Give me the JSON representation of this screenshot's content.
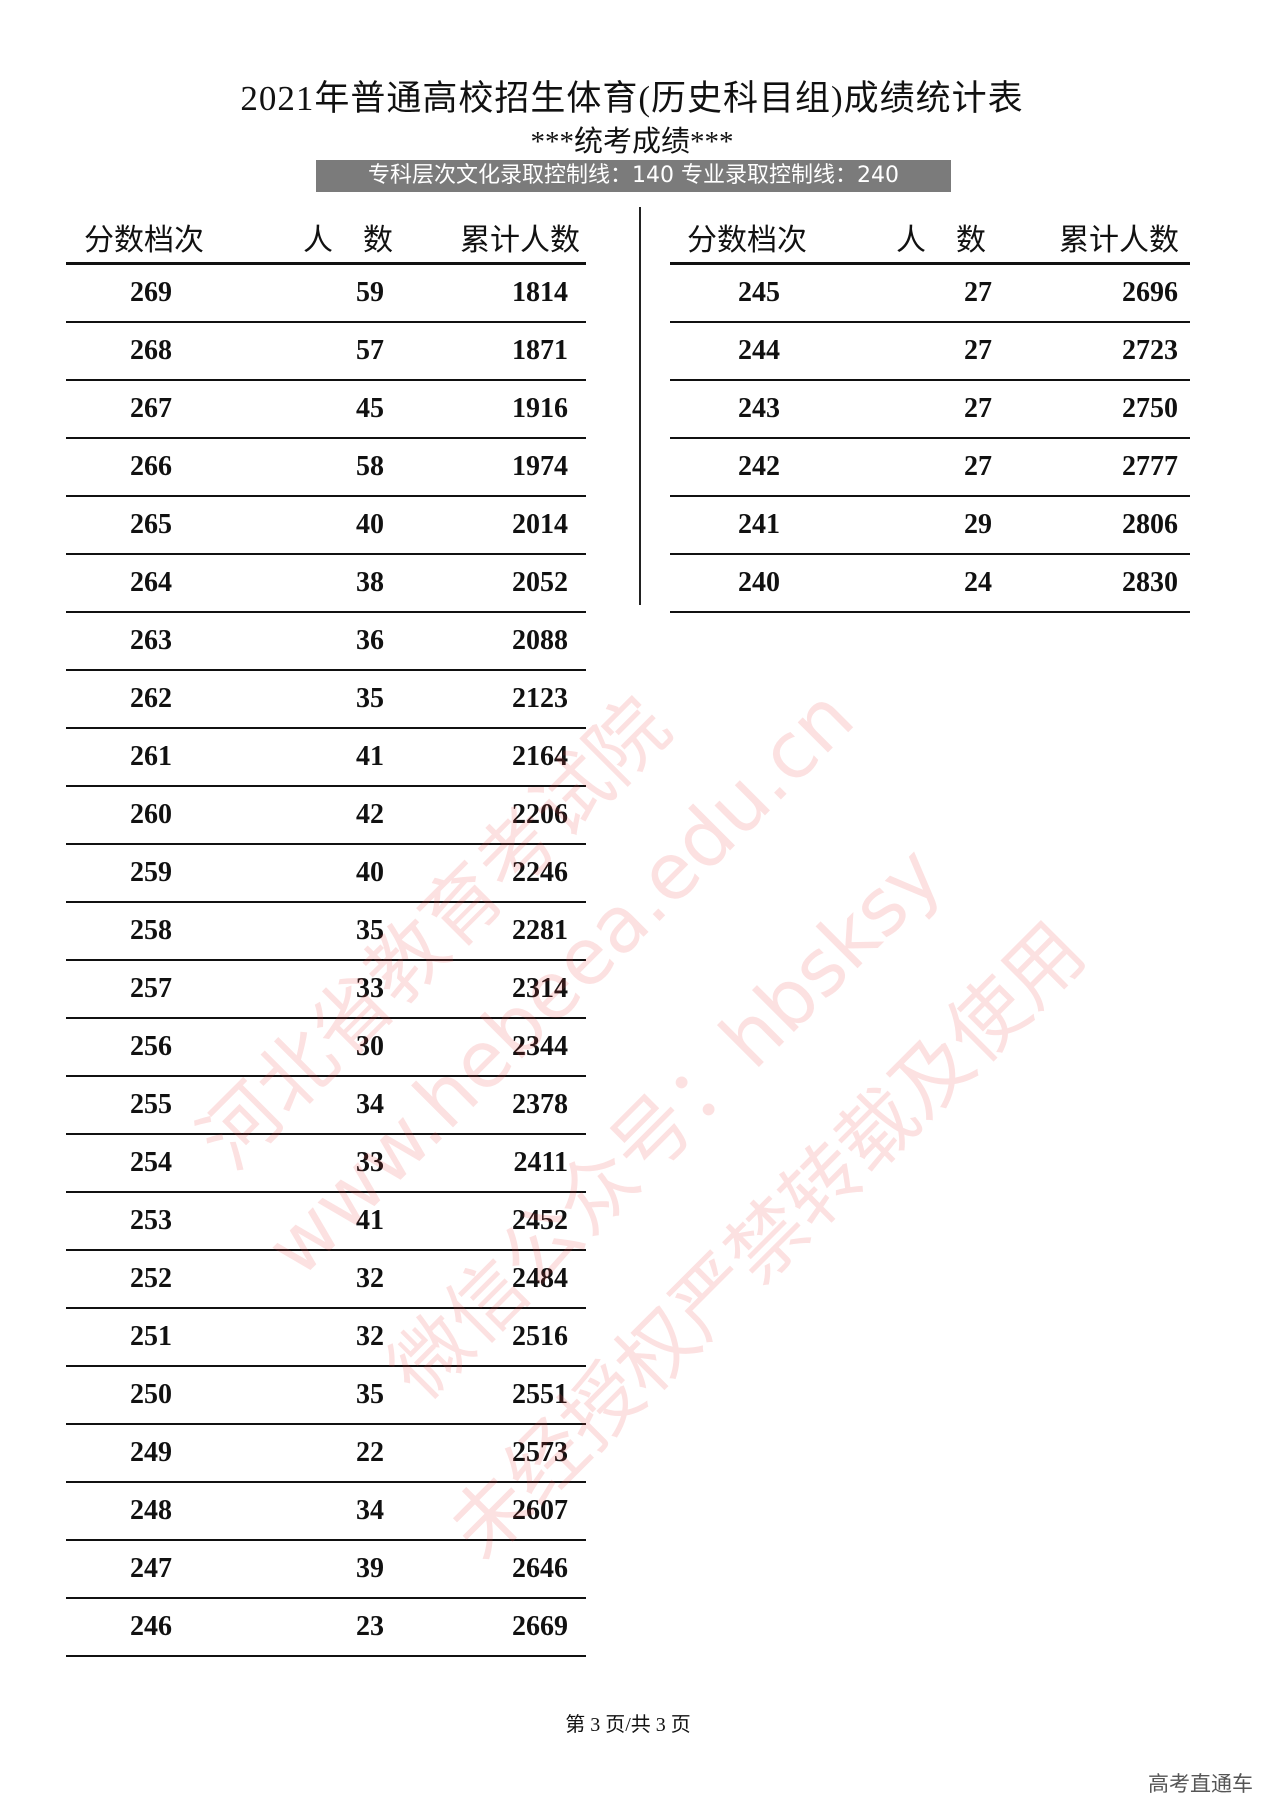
{
  "title": "2021年普通高校招生体育(历史科目组)成绩统计表",
  "subtitle": "***统考成绩***",
  "control_line": "专科层次文化录取控制线：140  专业录取控制线：240",
  "headers": [
    "分数档次",
    "人　数",
    "累计人数"
  ],
  "left_rows": [
    [
      "269",
      "59",
      "1814"
    ],
    [
      "268",
      "57",
      "1871"
    ],
    [
      "267",
      "45",
      "1916"
    ],
    [
      "266",
      "58",
      "1974"
    ],
    [
      "265",
      "40",
      "2014"
    ],
    [
      "264",
      "38",
      "2052"
    ],
    [
      "263",
      "36",
      "2088"
    ],
    [
      "262",
      "35",
      "2123"
    ],
    [
      "261",
      "41",
      "2164"
    ],
    [
      "260",
      "42",
      "2206"
    ],
    [
      "259",
      "40",
      "2246"
    ],
    [
      "258",
      "35",
      "2281"
    ],
    [
      "257",
      "33",
      "2314"
    ],
    [
      "256",
      "30",
      "2344"
    ],
    [
      "255",
      "34",
      "2378"
    ],
    [
      "254",
      "33",
      "2411"
    ],
    [
      "253",
      "41",
      "2452"
    ],
    [
      "252",
      "32",
      "2484"
    ],
    [
      "251",
      "32",
      "2516"
    ],
    [
      "250",
      "35",
      "2551"
    ],
    [
      "249",
      "22",
      "2573"
    ],
    [
      "248",
      "34",
      "2607"
    ],
    [
      "247",
      "39",
      "2646"
    ],
    [
      "246",
      "23",
      "2669"
    ]
  ],
  "right_rows": [
    [
      "245",
      "27",
      "2696"
    ],
    [
      "244",
      "27",
      "2723"
    ],
    [
      "243",
      "27",
      "2750"
    ],
    [
      "242",
      "27",
      "2777"
    ],
    [
      "241",
      "29",
      "2806"
    ],
    [
      "240",
      "24",
      "2830"
    ]
  ],
  "footer": "第 3 页/共 3 页",
  "brand": "高考直通车",
  "watermark": [
    "河北省教育考试院",
    "www.hebeea.edu.cn",
    "微信公众号：hbsksy",
    "未经授权严禁转载及使用"
  ],
  "watermark_color": "#eb4646"
}
